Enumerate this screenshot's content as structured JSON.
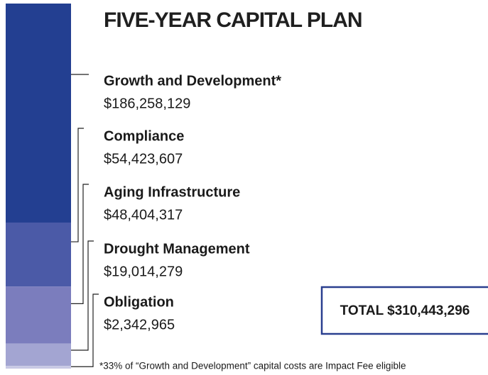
{
  "chart_data": {
    "type": "bar",
    "stacked": true,
    "title": "FIVE-YEAR CAPITAL PLAN",
    "series": [
      {
        "name": "Growth and Development*",
        "color": "#233f91",
        "values": [
          186258129
        ],
        "value_labels": [
          "$186,258,129"
        ]
      },
      {
        "name": "Compliance",
        "color": "#4b5aa7",
        "values": [
          54423607
        ],
        "value_labels": [
          "$54,423,607"
        ]
      },
      {
        "name": "Aging Infrastructure",
        "color": "#7b7dbd",
        "values": [
          48404317
        ],
        "value_labels": [
          "$48,404,317"
        ]
      },
      {
        "name": "Drought Management",
        "color": "#a3a5d2",
        "values": [
          19014279
        ],
        "value_labels": [
          "$19,014,279"
        ]
      },
      {
        "name": "Obligation",
        "color": "#c8c9e4",
        "values": [
          2342965
        ],
        "value_labels": [
          "$2,342,965"
        ]
      }
    ],
    "total_label": "TOTAL $310,443,296",
    "footnote": "*33% of “Growth and Development” capital costs are Impact Fee eligible"
  }
}
